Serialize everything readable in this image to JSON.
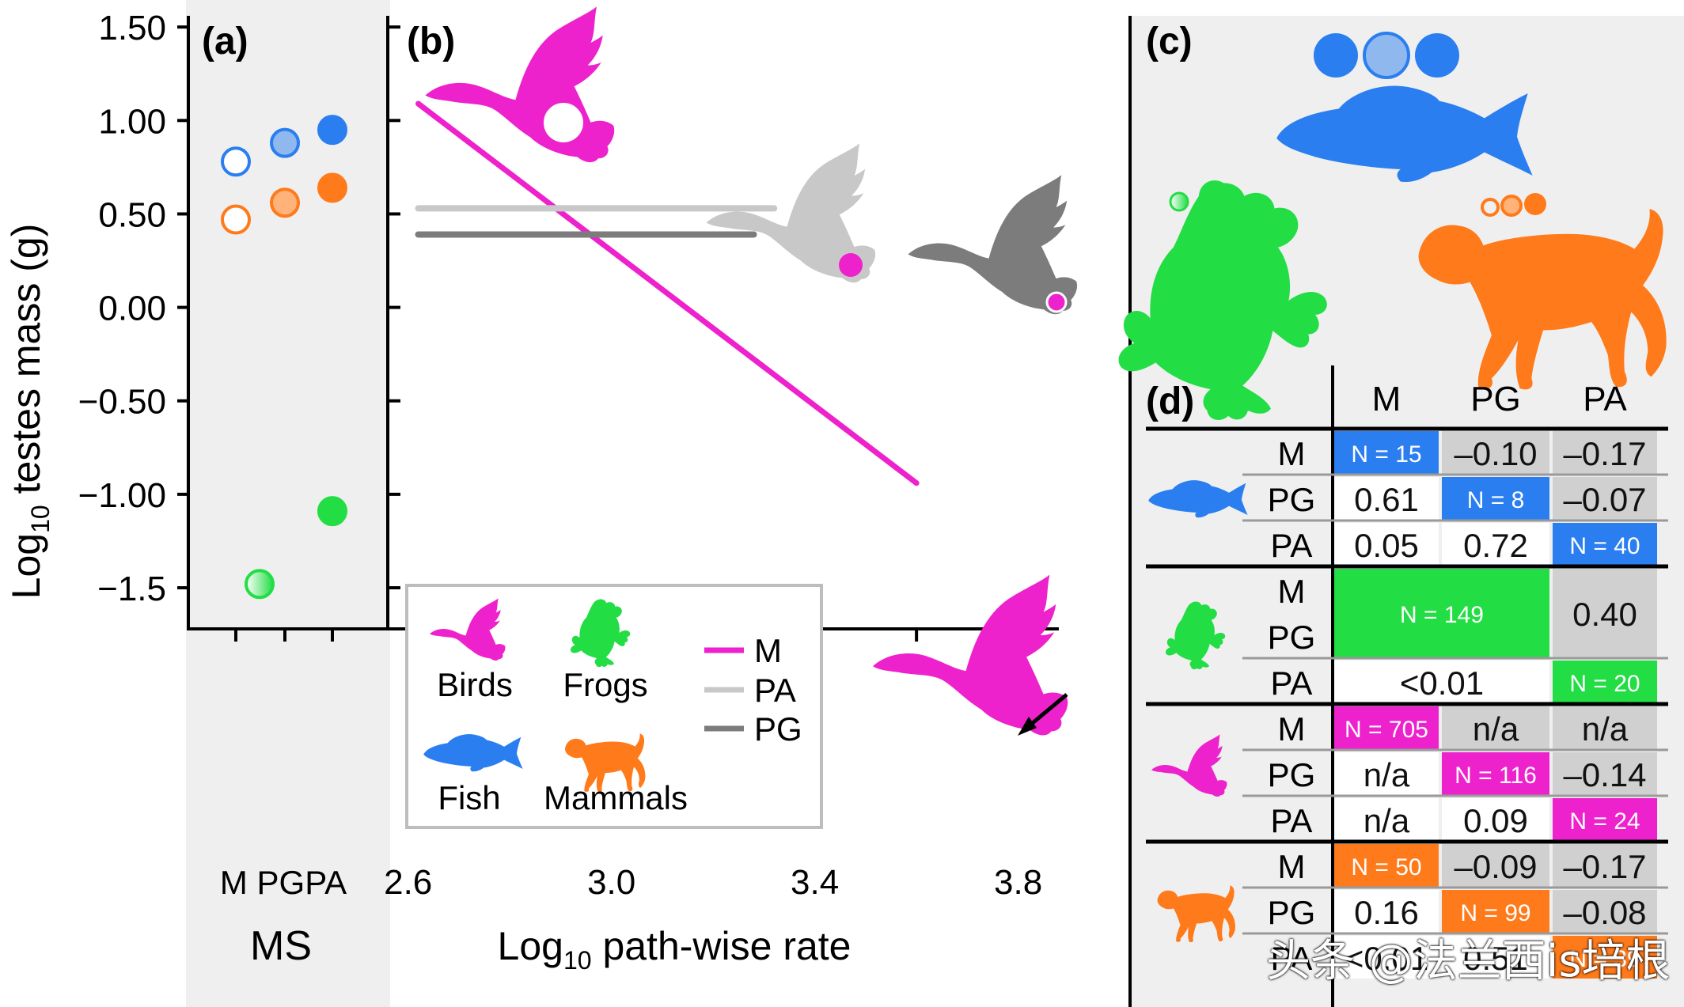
{
  "colors": {
    "birds": "#ee22cc",
    "frogs": "#22dd44",
    "fish": "#2a7ef0",
    "mammals": "#ff7a1a",
    "pa_line": "#c8c8c8",
    "pg_line": "#7c7c7c",
    "cell_gray": "#d0d0d0",
    "panel_bg": "#efefef"
  },
  "panels": {
    "a": "(a)",
    "b": "(b)",
    "c": "(c)",
    "d": "(d)"
  },
  "chart_data": [
    {
      "panel": "a",
      "type": "scatter",
      "ylabel": "Log10 testes mass (g)",
      "ylabel_base": "Log",
      "ylabel_sub": "10",
      "ylabel_rest": " testes mass (g)",
      "xlabel": "MS",
      "categories": [
        "M",
        "PG",
        "PA"
      ],
      "ylim": [
        -1.72,
        1.56
      ],
      "yticks": [
        1.5,
        1.0,
        0.5,
        0.0,
        -0.5,
        -1.0,
        -1.5
      ],
      "ytick_labels": [
        "1.50",
        "1.00",
        "0.50",
        "0.00",
        "−0.50",
        "−1.00",
        "−1.5"
      ],
      "series": [
        {
          "taxon": "fish",
          "points": [
            {
              "x": "M",
              "y": 0.78,
              "fill": "open"
            },
            {
              "x": "PG",
              "y": 0.88,
              "fill": "half"
            },
            {
              "x": "PA",
              "y": 0.95,
              "fill": "solid"
            }
          ]
        },
        {
          "taxon": "mammals",
          "points": [
            {
              "x": "M",
              "y": 0.47,
              "fill": "open"
            },
            {
              "x": "PG",
              "y": 0.56,
              "fill": "half"
            },
            {
              "x": "PA",
              "y": 0.64,
              "fill": "solid"
            }
          ]
        },
        {
          "taxon": "frogs",
          "points": [
            {
              "x": "PA",
              "y": -1.09,
              "fill": "solid"
            },
            {
              "x": "M/PG",
              "y": -1.48,
              "fill": "gradient"
            }
          ]
        }
      ]
    },
    {
      "panel": "b",
      "type": "line",
      "xlabel": "Log10 path-wise rate",
      "xlabel_base": "Log",
      "xlabel_sub": "10",
      "xlabel_rest": " path-wise rate",
      "xlim": [
        2.56,
        3.88
      ],
      "xticks": [
        2.6,
        3.0,
        3.4,
        3.8
      ],
      "xtick_labels": [
        "2.6",
        "3.0",
        "3.4",
        "3.8"
      ],
      "xminor": [
        2.8,
        3.2,
        3.6
      ],
      "ylim": [
        -1.72,
        1.56
      ],
      "series": [
        {
          "name": "M",
          "x": [
            2.62,
            3.6
          ],
          "y": [
            1.09,
            -0.94
          ]
        },
        {
          "name": "PA",
          "x": [
            2.62,
            3.32
          ],
          "y": [
            0.53,
            0.53
          ]
        },
        {
          "name": "PG",
          "x": [
            2.62,
            3.28
          ],
          "y": [
            0.39,
            0.39
          ]
        }
      ]
    }
  ],
  "legend": {
    "taxa": [
      "Birds",
      "Frogs",
      "Fish",
      "Mammals"
    ],
    "lines": [
      "M",
      "PA",
      "PG"
    ]
  },
  "table": {
    "headers": [
      "M",
      "PG",
      "PA"
    ],
    "groups": [
      {
        "taxon": "fish",
        "rows": [
          {
            "label": "M",
            "cells": [
              {
                "text": "N = 15",
                "style": "n"
              },
              {
                "text": "–0.10",
                "style": "gray"
              },
              {
                "text": "–0.17",
                "style": "gray"
              }
            ]
          },
          {
            "label": "PG",
            "cells": [
              {
                "text": "0.61",
                "style": "white"
              },
              {
                "text": "N = 8",
                "style": "n"
              },
              {
                "text": "–0.07",
                "style": "gray"
              }
            ]
          },
          {
            "label": "PA",
            "cells": [
              {
                "text": "0.05",
                "style": "white"
              },
              {
                "text": "0.72",
                "style": "white"
              },
              {
                "text": "N = 40",
                "style": "n"
              }
            ]
          }
        ]
      },
      {
        "taxon": "frogs",
        "rows": [
          {
            "label": "M\nPG",
            "cells": [
              {
                "text": "N = 149",
                "style": "n",
                "span": 2
              },
              {
                "text": "0.40",
                "style": "gray"
              }
            ]
          },
          {
            "label": "PA",
            "cells": [
              {
                "text": "<0.01",
                "style": "white",
                "span": 2
              },
              {
                "text": "N = 20",
                "style": "n"
              }
            ]
          }
        ]
      },
      {
        "taxon": "birds",
        "rows": [
          {
            "label": "M",
            "cells": [
              {
                "text": "N = 705",
                "style": "n"
              },
              {
                "text": "n/a",
                "style": "gray"
              },
              {
                "text": "n/a",
                "style": "gray"
              }
            ]
          },
          {
            "label": "PG",
            "cells": [
              {
                "text": "n/a",
                "style": "white"
              },
              {
                "text": "N = 116",
                "style": "n"
              },
              {
                "text": "–0.14",
                "style": "gray"
              }
            ]
          },
          {
            "label": "PA",
            "cells": [
              {
                "text": "n/a",
                "style": "white"
              },
              {
                "text": "0.09",
                "style": "white"
              },
              {
                "text": "N = 24",
                "style": "n"
              }
            ]
          }
        ]
      },
      {
        "taxon": "mammals",
        "rows": [
          {
            "label": "M",
            "cells": [
              {
                "text": "N = 50",
                "style": "n"
              },
              {
                "text": "–0.09",
                "style": "gray"
              },
              {
                "text": "–0.17",
                "style": "gray"
              }
            ]
          },
          {
            "label": "PG",
            "cells": [
              {
                "text": "0.16",
                "style": "white"
              },
              {
                "text": "N = 99",
                "style": "n"
              },
              {
                "text": "–0.08",
                "style": "gray"
              }
            ]
          },
          {
            "label": "PA",
            "cells": [
              {
                "text": "<0.01",
                "style": "white"
              },
              {
                "text": "0.51",
                "style": "white"
              },
              {
                "text": "N = 39",
                "style": "n"
              }
            ]
          }
        ]
      }
    ]
  },
  "watermark": "头条 @法兰西is培根"
}
